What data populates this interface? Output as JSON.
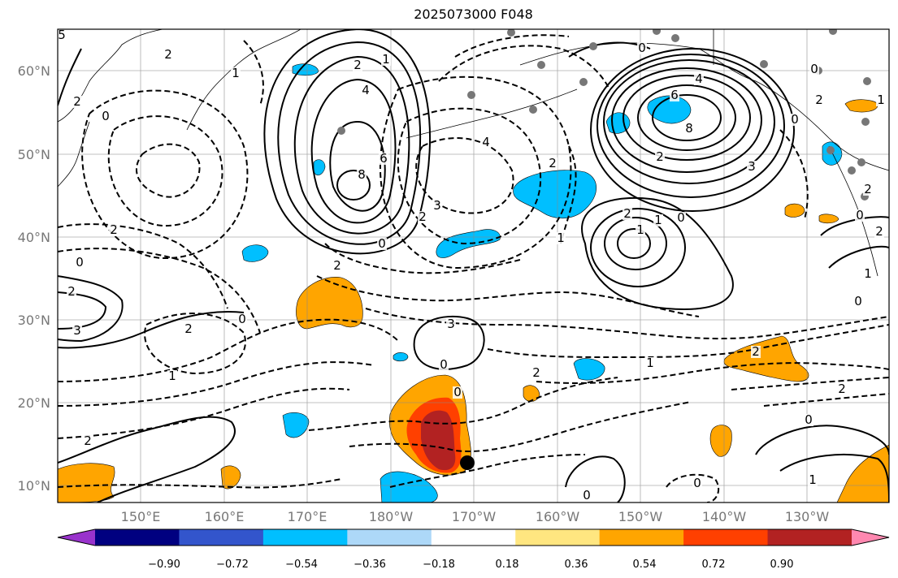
{
  "title": "2025073000 F048",
  "lat_labels": [
    "60°N",
    "50°N",
    "40°N",
    "30°N",
    "20°N",
    "10°N"
  ],
  "lon_labels": [
    "150°E",
    "160°E",
    "170°E",
    "180°W",
    "170°W",
    "160°W",
    "150°W",
    "140°W",
    "130°W"
  ],
  "colorbar": {
    "colors": [
      "#9933cc",
      "#000080",
      "#3355cc",
      "#00bfff",
      "#add8f8",
      "#ffffff",
      "#ffe680",
      "#ffa500",
      "#ff4000",
      "#b22222",
      "#ff88b0"
    ],
    "tick_labels": [
      "−0.90",
      "−0.72",
      "−0.54",
      "−0.36",
      "−0.18",
      "0.18",
      "0.36",
      "0.54",
      "0.72",
      "0.90"
    ]
  },
  "contour_labels": [
    "5",
    "2",
    "0",
    "2",
    "1",
    "2",
    "0",
    "2",
    "3",
    "2",
    "0",
    "1",
    "2",
    "6",
    "8",
    "4",
    "2",
    "1",
    "3",
    "2",
    "4",
    "2",
    "1",
    "0",
    "2",
    "3",
    "0",
    "2",
    "1",
    "0",
    "4",
    "6",
    "8",
    "3",
    "2",
    "0",
    "2",
    "1",
    "0",
    "1",
    "0",
    "0",
    "1",
    "2",
    "0",
    "2",
    "2",
    "0",
    "0",
    "1",
    "0",
    "2",
    "1",
    "2",
    "0"
  ],
  "storm_marker": "tropical-cyclone-center"
}
